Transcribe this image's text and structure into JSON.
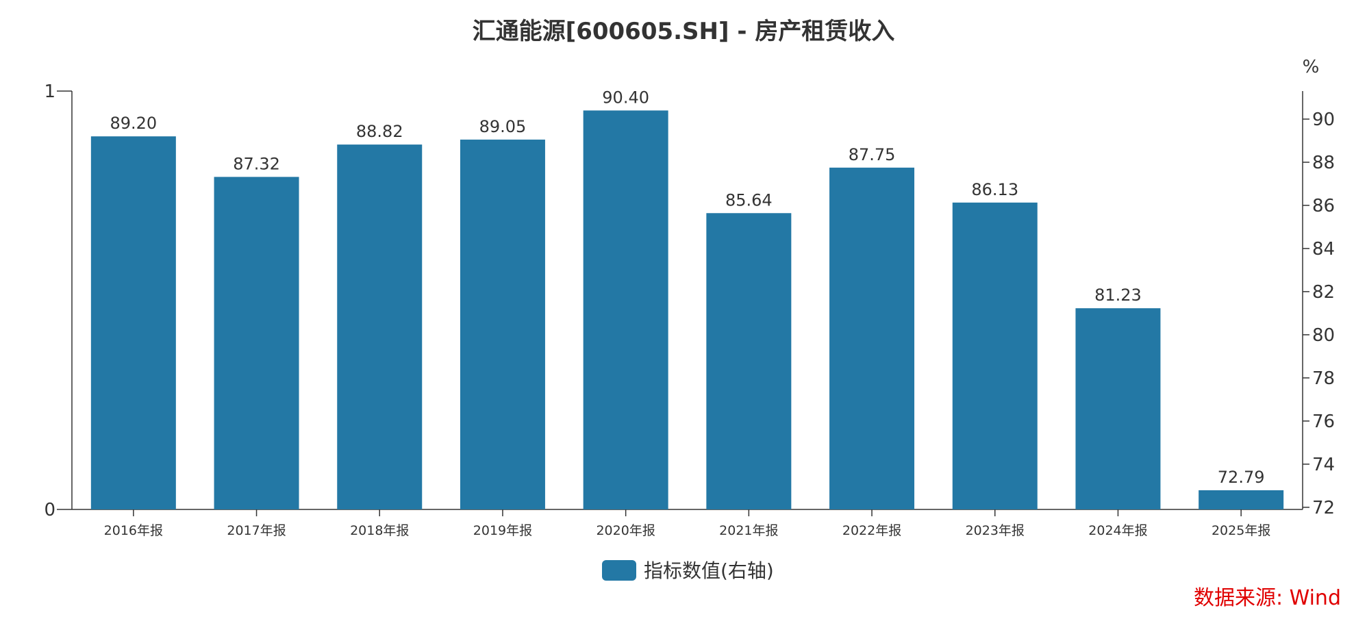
{
  "chart_data": {
    "type": "bar",
    "title": "汇通能源[600605.SH] - 房产租赁收入",
    "categories": [
      "2016年报",
      "2017年报",
      "2018年报",
      "2019年报",
      "2020年报",
      "2021年报",
      "2022年报",
      "2023年报",
      "2024年报",
      "2025年报"
    ],
    "series": [
      {
        "name": "指标数值(右轴)",
        "values": [
          89.2,
          87.32,
          88.82,
          89.05,
          90.4,
          85.64,
          87.75,
          86.13,
          81.23,
          72.79
        ],
        "labels": [
          "89.20",
          "87.32",
          "88.82",
          "89.05",
          "90.40",
          "85.64",
          "87.75",
          "86.13",
          "81.23",
          "72.79"
        ]
      }
    ],
    "left_axis": {
      "ylim": [
        0,
        1
      ],
      "ticks": [
        "0",
        "1"
      ]
    },
    "right_axis": {
      "unit": "%",
      "ylim": [
        71.9,
        91.3
      ],
      "ticks": [
        72,
        74,
        76,
        78,
        80,
        82,
        84,
        86,
        88,
        90
      ]
    },
    "bar_color": "#2378a5",
    "legend_position": "bottom-center",
    "grid": false
  },
  "source": "数据来源: Wind"
}
